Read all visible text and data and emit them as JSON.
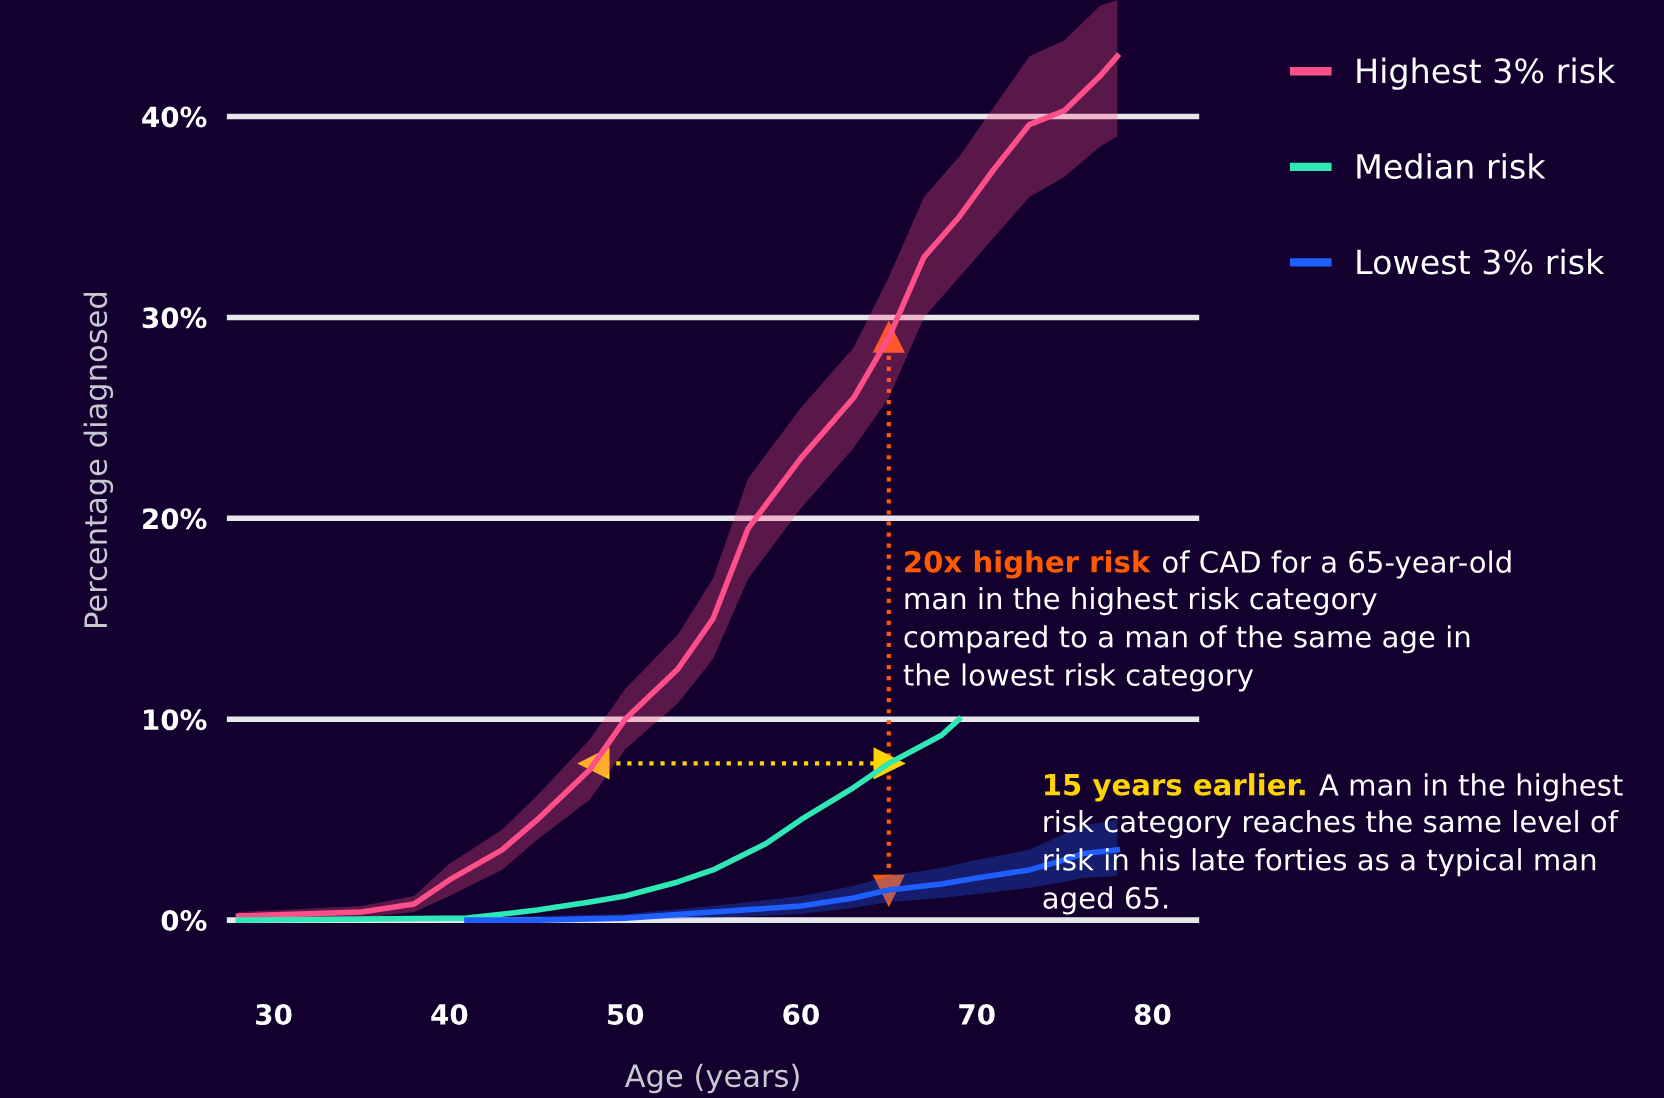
{
  "chart_data": {
    "type": "line",
    "xlabel": "Age (years)",
    "ylabel": "Percentage diagnosed",
    "xlim": [
      27.5,
      82.5
    ],
    "xticks": [
      30,
      40,
      50,
      60,
      70,
      80
    ],
    "ylim": [
      0,
      45.8
    ],
    "yticks": [
      {
        "value": 0,
        "label": "0%"
      },
      {
        "value": 10,
        "label": "10%"
      },
      {
        "value": 20,
        "label": "20%"
      },
      {
        "value": 30,
        "label": "30%"
      },
      {
        "value": 40,
        "label": "40%"
      }
    ],
    "grid": "y",
    "legend": "right",
    "ref_lines": [
      {
        "axis": "x",
        "value": 65,
        "color": "#ff5a00",
        "line_style": "dotted"
      }
    ],
    "series": [
      {
        "name": "Highest 3% risk",
        "color": "#ff4f8b",
        "x": [
          28,
          35,
          38,
          40,
          43,
          45,
          48,
          50,
          53,
          55,
          57,
          60,
          63,
          65,
          67,
          69,
          71,
          73,
          75,
          77,
          78
        ],
        "values": [
          0.2,
          0.4,
          0.8,
          2,
          3.5,
          5,
          7.5,
          10,
          12.5,
          15,
          19.5,
          23,
          26,
          29,
          33,
          35,
          37.4,
          39.6,
          40.3,
          42,
          43
        ],
        "lower": [
          0,
          0.1,
          0.4,
          1.2,
          2.5,
          4,
          6,
          8.5,
          10.8,
          13,
          17,
          20.5,
          23.5,
          26,
          30,
          32,
          34,
          36,
          37,
          38.5,
          39
        ],
        "upper": [
          0.4,
          0.7,
          1.2,
          2.8,
          4.5,
          6.2,
          9,
          11.5,
          14.2,
          17,
          22,
          25.5,
          28.5,
          32,
          36,
          38,
          40.5,
          43,
          43.8,
          45.5,
          45.8
        ]
      },
      {
        "name": "Median risk",
        "color": "#2ee8b6",
        "x": [
          28,
          41,
          45,
          48,
          50,
          53,
          55,
          58,
          60,
          63,
          65,
          68,
          69
        ],
        "values": [
          0,
          0.1,
          0.5,
          0.9,
          1.2,
          1.9,
          2.5,
          3.8,
          5,
          6.6,
          7.8,
          9.2,
          10
        ]
      },
      {
        "name": "Lowest 3% risk",
        "color": "#1f5fff",
        "x": [
          41,
          45,
          50,
          55,
          60,
          63,
          65,
          68,
          70,
          73,
          75,
          76,
          78
        ],
        "values": [
          0,
          0,
          0.1,
          0.4,
          0.7,
          1.1,
          1.5,
          1.8,
          2.1,
          2.5,
          3,
          3.3,
          3.5
        ],
        "lower": [
          0,
          0,
          0,
          0.1,
          0.3,
          0.6,
          0.9,
          1.1,
          1.3,
          1.6,
          1.9,
          2.1,
          2.2
        ],
        "upper": [
          0.1,
          0.2,
          0.3,
          0.7,
          1.2,
          1.7,
          2.2,
          2.6,
          3,
          3.5,
          4.3,
          4.7,
          5
        ]
      }
    ],
    "annotations": [
      "20x higher risk",
      "of CAD for a 65-year-old\nman in the highest risk category\ncompared to a man of the same age in\nthe lowest risk category",
      "15 years earlier.",
      "A man in the highest\nrisk category reaches the same level of\nrisk in his late forties as a typical man\naged 65."
    ]
  }
}
